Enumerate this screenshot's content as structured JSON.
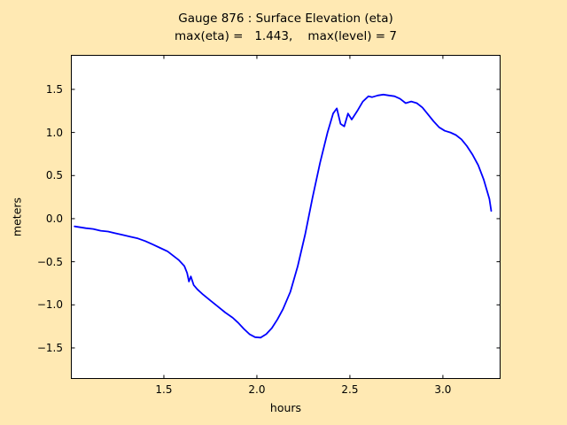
{
  "figure": {
    "background_color": "#ffe9b3",
    "plot_background": "#ffffff",
    "frame_color": "#000000"
  },
  "chart_data": {
    "type": "line",
    "title": "Gauge 876 : Surface Elevation (eta)",
    "subtitle": "max(eta) =   1.443,    max(level) = 7",
    "xlabel": "hours",
    "ylabel": "meters",
    "xlim": [
      1.0,
      3.31
    ],
    "ylim": [
      -1.86,
      1.9
    ],
    "xticks": [
      1.5,
      2.0,
      2.5,
      3.0
    ],
    "xtick_labels": [
      "1.5",
      "2.0",
      "2.5",
      "3.0"
    ],
    "yticks": [
      -1.5,
      -1.0,
      -0.5,
      0.0,
      0.5,
      1.0,
      1.5
    ],
    "ytick_labels": [
      "−1.5",
      "−1.0",
      "−0.5",
      "0.0",
      "0.5",
      "1.0",
      "1.5"
    ],
    "grid": false,
    "legend": null,
    "max_eta": 1.443,
    "max_level": 7,
    "series": [
      {
        "name": "eta",
        "color": "#0000ff",
        "line_width": 1.8,
        "points": [
          [
            1.02,
            -0.09
          ],
          [
            1.05,
            -0.1
          ],
          [
            1.08,
            -0.11
          ],
          [
            1.12,
            -0.12
          ],
          [
            1.16,
            -0.14
          ],
          [
            1.2,
            -0.15
          ],
          [
            1.24,
            -0.17
          ],
          [
            1.28,
            -0.19
          ],
          [
            1.32,
            -0.21
          ],
          [
            1.36,
            -0.23
          ],
          [
            1.4,
            -0.26
          ],
          [
            1.44,
            -0.3
          ],
          [
            1.48,
            -0.34
          ],
          [
            1.52,
            -0.38
          ],
          [
            1.55,
            -0.43
          ],
          [
            1.58,
            -0.48
          ],
          [
            1.61,
            -0.55
          ],
          [
            1.625,
            -0.63
          ],
          [
            1.635,
            -0.73
          ],
          [
            1.645,
            -0.67
          ],
          [
            1.66,
            -0.77
          ],
          [
            1.68,
            -0.82
          ],
          [
            1.71,
            -0.88
          ],
          [
            1.75,
            -0.95
          ],
          [
            1.79,
            -1.02
          ],
          [
            1.83,
            -1.09
          ],
          [
            1.87,
            -1.15
          ],
          [
            1.9,
            -1.21
          ],
          [
            1.93,
            -1.28
          ],
          [
            1.96,
            -1.34
          ],
          [
            1.99,
            -1.375
          ],
          [
            2.02,
            -1.38
          ],
          [
            2.05,
            -1.34
          ],
          [
            2.08,
            -1.27
          ],
          [
            2.11,
            -1.17
          ],
          [
            2.14,
            -1.05
          ],
          [
            2.18,
            -0.85
          ],
          [
            2.22,
            -0.55
          ],
          [
            2.26,
            -0.18
          ],
          [
            2.3,
            0.25
          ],
          [
            2.34,
            0.65
          ],
          [
            2.38,
            1.0
          ],
          [
            2.41,
            1.22
          ],
          [
            2.43,
            1.28
          ],
          [
            2.45,
            1.1
          ],
          [
            2.47,
            1.07
          ],
          [
            2.49,
            1.22
          ],
          [
            2.51,
            1.15
          ],
          [
            2.54,
            1.25
          ],
          [
            2.57,
            1.36
          ],
          [
            2.6,
            1.42
          ],
          [
            2.62,
            1.41
          ],
          [
            2.65,
            1.43
          ],
          [
            2.68,
            1.44
          ],
          [
            2.71,
            1.43
          ],
          [
            2.74,
            1.42
          ],
          [
            2.77,
            1.39
          ],
          [
            2.8,
            1.34
          ],
          [
            2.83,
            1.36
          ],
          [
            2.86,
            1.34
          ],
          [
            2.89,
            1.29
          ],
          [
            2.92,
            1.21
          ],
          [
            2.95,
            1.13
          ],
          [
            2.98,
            1.06
          ],
          [
            3.01,
            1.02
          ],
          [
            3.04,
            1.0
          ],
          [
            3.07,
            0.97
          ],
          [
            3.1,
            0.92
          ],
          [
            3.13,
            0.84
          ],
          [
            3.16,
            0.74
          ],
          [
            3.19,
            0.62
          ],
          [
            3.22,
            0.45
          ],
          [
            3.25,
            0.23
          ],
          [
            3.26,
            0.09
          ]
        ]
      }
    ]
  }
}
